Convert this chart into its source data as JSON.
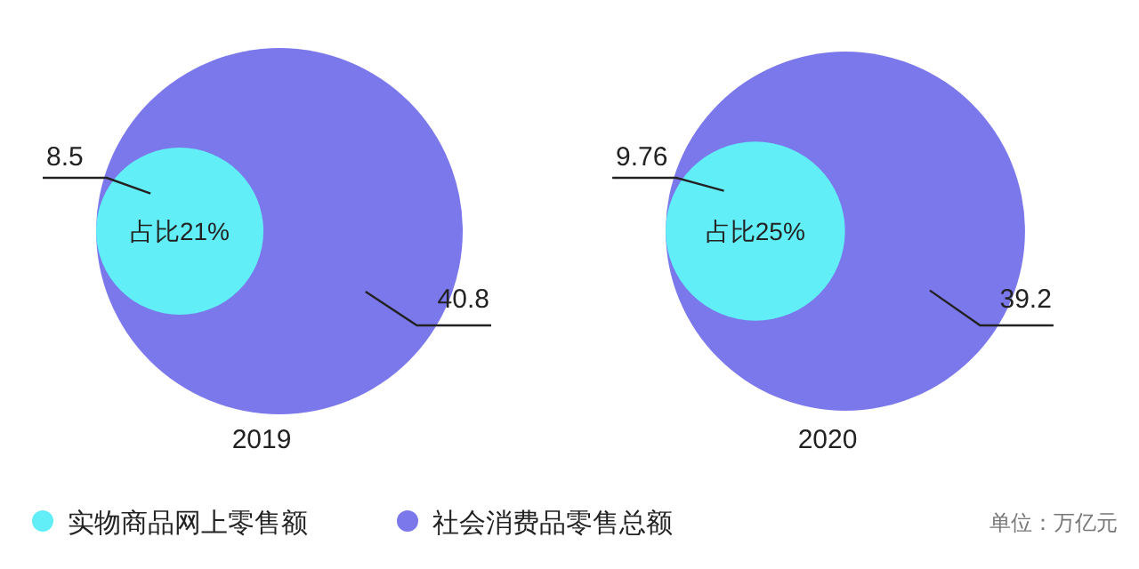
{
  "chart_data": [
    {
      "type": "other",
      "title": "2019",
      "data_labels": true,
      "categories": [
        "实物商品网上零售额",
        "社会消费品零售总额"
      ],
      "values": [
        8.5,
        40.8
      ],
      "colors": [
        "#62eef6",
        "#7b78ec"
      ],
      "annotations": [
        "占比21%"
      ]
    },
    {
      "type": "other",
      "title": "2020",
      "data_labels": true,
      "categories": [
        null,
        null
      ],
      "values": [
        9.76,
        39.2
      ],
      "colors": [
        "#62eef6",
        "#7b78ec"
      ],
      "annotations": [
        "占比25%",
        "单位：万亿元"
      ]
    }
  ]
}
